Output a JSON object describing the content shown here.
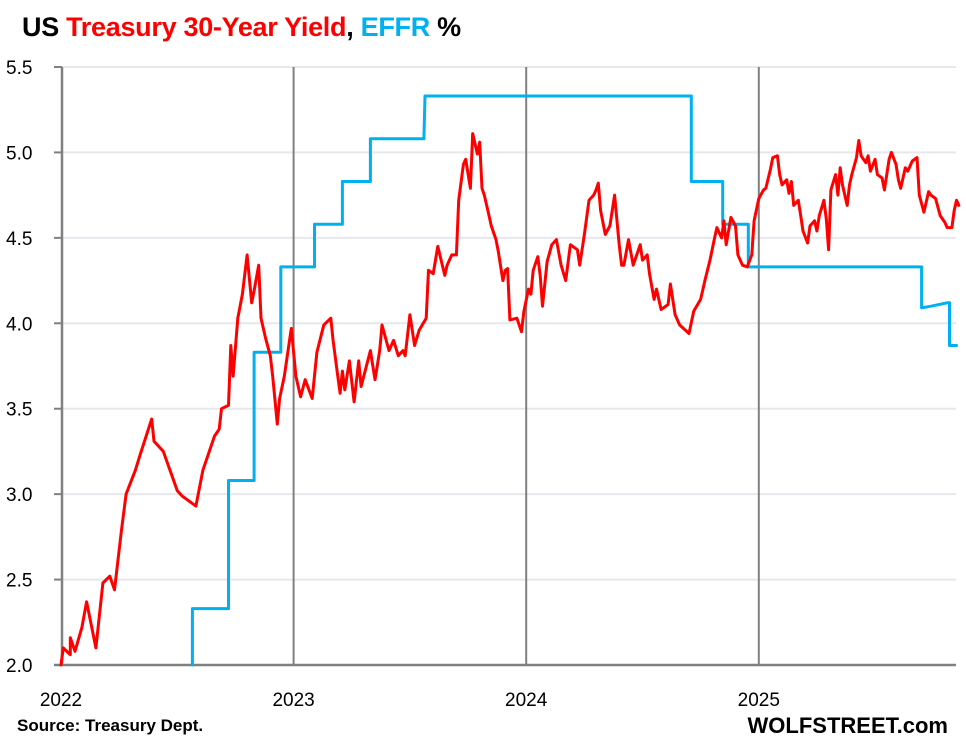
{
  "title": {
    "part1": "US ",
    "part2": "Treasury 30-Year Yield",
    "part3": ", ",
    "part4": "EFFR",
    "part5": " %",
    "color_treasury": "#FF0000",
    "color_effr": "#00B0F0"
  },
  "source": "Source: Treasury Dept.",
  "brand": "WOLFSTREET.com",
  "chart_data": {
    "type": "line",
    "title": "US Treasury 30-Year Yield, EFFR %",
    "xlabel": "",
    "ylabel": "",
    "xlim": [
      2022.0,
      2025.85
    ],
    "ylim": [
      2.0,
      5.5
    ],
    "grid": true,
    "legend": "none (colored title)",
    "x_ticks": [
      "2022",
      "2023",
      "2024",
      "2025"
    ],
    "x_tick_values": [
      2022,
      2023,
      2024,
      2025
    ],
    "y_ticks": [
      "2.0",
      "2.5",
      "3.0",
      "3.5",
      "4.0",
      "4.5",
      "5.0",
      "5.5"
    ],
    "y_tick_values": [
      2.0,
      2.5,
      3.0,
      3.5,
      4.0,
      4.5,
      5.0,
      5.5
    ],
    "series": [
      {
        "name": "Treasury 30-Year Yield",
        "color": "#FF0000",
        "points": [
          [
            2022.0,
            2.0
          ],
          [
            2022.01,
            2.1
          ],
          [
            2022.04,
            2.06
          ],
          [
            2022.04,
            2.16
          ],
          [
            2022.06,
            2.08
          ],
          [
            2022.09,
            2.22
          ],
          [
            2022.11,
            2.37
          ],
          [
            2022.15,
            2.1
          ],
          [
            2022.18,
            2.48
          ],
          [
            2022.21,
            2.52
          ],
          [
            2022.23,
            2.44
          ],
          [
            2022.26,
            2.79
          ],
          [
            2022.28,
            3.0
          ],
          [
            2022.32,
            3.14
          ],
          [
            2022.34,
            3.23
          ],
          [
            2022.39,
            3.44
          ],
          [
            2022.4,
            3.31
          ],
          [
            2022.44,
            3.25
          ],
          [
            2022.5,
            3.02
          ],
          [
            2022.52,
            2.99
          ],
          [
            2022.58,
            2.93
          ],
          [
            2022.61,
            3.14
          ],
          [
            2022.66,
            3.34
          ],
          [
            2022.68,
            3.38
          ],
          [
            2022.69,
            3.5
          ],
          [
            2022.72,
            3.52
          ],
          [
            2022.73,
            3.87
          ],
          [
            2022.74,
            3.69
          ],
          [
            2022.76,
            4.03
          ],
          [
            2022.78,
            4.17
          ],
          [
            2022.8,
            4.4
          ],
          [
            2022.82,
            4.12
          ],
          [
            2022.83,
            4.19
          ],
          [
            2022.85,
            4.34
          ],
          [
            2022.86,
            4.03
          ],
          [
            2022.88,
            3.91
          ],
          [
            2022.9,
            3.81
          ],
          [
            2022.91,
            3.69
          ],
          [
            2022.93,
            3.41
          ],
          [
            2022.94,
            3.56
          ],
          [
            2022.96,
            3.69
          ],
          [
            2022.99,
            3.97
          ],
          [
            2023.01,
            3.69
          ],
          [
            2023.03,
            3.57
          ],
          [
            2023.05,
            3.67
          ],
          [
            2023.08,
            3.56
          ],
          [
            2023.1,
            3.83
          ],
          [
            2023.13,
            3.99
          ],
          [
            2023.16,
            4.03
          ],
          [
            2023.17,
            3.9
          ],
          [
            2023.19,
            3.69
          ],
          [
            2023.2,
            3.59
          ],
          [
            2023.21,
            3.72
          ],
          [
            2023.22,
            3.61
          ],
          [
            2023.24,
            3.78
          ],
          [
            2023.26,
            3.54
          ],
          [
            2023.28,
            3.78
          ],
          [
            2023.29,
            3.63
          ],
          [
            2023.33,
            3.84
          ],
          [
            2023.35,
            3.67
          ],
          [
            2023.37,
            3.84
          ],
          [
            2023.38,
            3.99
          ],
          [
            2023.41,
            3.84
          ],
          [
            2023.43,
            3.9
          ],
          [
            2023.45,
            3.81
          ],
          [
            2023.47,
            3.84
          ],
          [
            2023.48,
            3.81
          ],
          [
            2023.5,
            4.05
          ],
          [
            2023.52,
            3.87
          ],
          [
            2023.54,
            3.96
          ],
          [
            2023.57,
            4.03
          ],
          [
            2023.58,
            4.31
          ],
          [
            2023.6,
            4.29
          ],
          [
            2023.62,
            4.45
          ],
          [
            2023.65,
            4.28
          ],
          [
            2023.66,
            4.34
          ],
          [
            2023.68,
            4.4
          ],
          [
            2023.7,
            4.4
          ],
          [
            2023.71,
            4.72
          ],
          [
            2023.73,
            4.93
          ],
          [
            2023.74,
            4.96
          ],
          [
            2023.76,
            4.79
          ],
          [
            2023.77,
            5.11
          ],
          [
            2023.79,
            4.99
          ],
          [
            2023.8,
            5.06
          ],
          [
            2023.81,
            4.79
          ],
          [
            2023.82,
            4.75
          ],
          [
            2023.84,
            4.63
          ],
          [
            2023.85,
            4.57
          ],
          [
            2023.87,
            4.49
          ],
          [
            2023.88,
            4.42
          ],
          [
            2023.9,
            4.25
          ],
          [
            2023.91,
            4.31
          ],
          [
            2023.92,
            4.32
          ],
          [
            2023.93,
            4.02
          ],
          [
            2023.96,
            4.03
          ],
          [
            2023.98,
            3.95
          ],
          [
            2023.99,
            4.07
          ],
          [
            2024.01,
            4.2
          ],
          [
            2024.02,
            4.17
          ],
          [
            2024.03,
            4.31
          ],
          [
            2024.05,
            4.39
          ],
          [
            2024.06,
            4.28
          ],
          [
            2024.07,
            4.1
          ],
          [
            2024.09,
            4.36
          ],
          [
            2024.11,
            4.46
          ],
          [
            2024.13,
            4.49
          ],
          [
            2024.15,
            4.34
          ],
          [
            2024.17,
            4.25
          ],
          [
            2024.19,
            4.46
          ],
          [
            2024.22,
            4.43
          ],
          [
            2024.23,
            4.34
          ],
          [
            2024.25,
            4.52
          ],
          [
            2024.27,
            4.72
          ],
          [
            2024.29,
            4.75
          ],
          [
            2024.3,
            4.78
          ],
          [
            2024.31,
            4.82
          ],
          [
            2024.32,
            4.66
          ],
          [
            2024.34,
            4.52
          ],
          [
            2024.36,
            4.57
          ],
          [
            2024.38,
            4.75
          ],
          [
            2024.4,
            4.46
          ],
          [
            2024.41,
            4.34
          ],
          [
            2024.42,
            4.34
          ],
          [
            2024.44,
            4.49
          ],
          [
            2024.46,
            4.34
          ],
          [
            2024.49,
            4.46
          ],
          [
            2024.5,
            4.37
          ],
          [
            2024.52,
            4.4
          ],
          [
            2024.53,
            4.29
          ],
          [
            2024.55,
            4.14
          ],
          [
            2024.56,
            4.2
          ],
          [
            2024.58,
            4.08
          ],
          [
            2024.61,
            4.11
          ],
          [
            2024.62,
            4.23
          ],
          [
            2024.64,
            4.05
          ],
          [
            2024.66,
            3.99
          ],
          [
            2024.7,
            3.94
          ],
          [
            2024.72,
            4.07
          ],
          [
            2024.75,
            4.14
          ],
          [
            2024.77,
            4.26
          ],
          [
            2024.79,
            4.37
          ],
          [
            2024.81,
            4.5
          ],
          [
            2024.82,
            4.56
          ],
          [
            2024.84,
            4.5
          ],
          [
            2024.85,
            4.6
          ],
          [
            2024.86,
            4.46
          ],
          [
            2024.88,
            4.62
          ],
          [
            2024.9,
            4.57
          ],
          [
            2024.91,
            4.4
          ],
          [
            2024.93,
            4.34
          ],
          [
            2024.95,
            4.33
          ],
          [
            2024.97,
            4.4
          ],
          [
            2024.98,
            4.6
          ],
          [
            2025.0,
            4.73
          ],
          [
            2025.02,
            4.78
          ],
          [
            2025.03,
            4.79
          ],
          [
            2025.05,
            4.9
          ],
          [
            2025.06,
            4.97
          ],
          [
            2025.08,
            4.98
          ],
          [
            2025.09,
            4.87
          ],
          [
            2025.1,
            4.81
          ],
          [
            2025.12,
            4.84
          ],
          [
            2025.13,
            4.76
          ],
          [
            2025.14,
            4.83
          ],
          [
            2025.15,
            4.69
          ],
          [
            2025.17,
            4.72
          ],
          [
            2025.18,
            4.63
          ],
          [
            2025.19,
            4.54
          ],
          [
            2025.21,
            4.47
          ],
          [
            2025.22,
            4.57
          ],
          [
            2025.24,
            4.6
          ],
          [
            2025.25,
            4.54
          ],
          [
            2025.26,
            4.63
          ],
          [
            2025.28,
            4.72
          ],
          [
            2025.29,
            4.61
          ],
          [
            2025.3,
            4.43
          ],
          [
            2025.31,
            4.78
          ],
          [
            2025.33,
            4.87
          ],
          [
            2025.34,
            4.75
          ],
          [
            2025.35,
            4.91
          ],
          [
            2025.36,
            4.81
          ],
          [
            2025.38,
            4.69
          ],
          [
            2025.39,
            4.81
          ],
          [
            2025.4,
            4.87
          ],
          [
            2025.42,
            4.97
          ],
          [
            2025.43,
            5.07
          ],
          [
            2025.44,
            4.98
          ],
          [
            2025.46,
            4.94
          ],
          [
            2025.47,
            4.98
          ],
          [
            2025.48,
            4.89
          ],
          [
            2025.5,
            4.96
          ],
          [
            2025.51,
            4.87
          ],
          [
            2025.53,
            4.85
          ],
          [
            2025.54,
            4.78
          ],
          [
            2025.56,
            4.96
          ],
          [
            2025.57,
            5.0
          ],
          [
            2025.59,
            4.93
          ],
          [
            2025.6,
            4.84
          ],
          [
            2025.61,
            4.79
          ],
          [
            2025.63,
            4.91
          ],
          [
            2025.64,
            4.89
          ],
          [
            2025.66,
            4.95
          ],
          [
            2025.68,
            4.97
          ],
          [
            2025.69,
            4.75
          ],
          [
            2025.71,
            4.65
          ],
          [
            2025.73,
            4.77
          ],
          [
            2025.74,
            4.75
          ],
          [
            2025.76,
            4.73
          ],
          [
            2025.78,
            4.63
          ],
          [
            2025.8,
            4.59
          ],
          [
            2025.81,
            4.56
          ],
          [
            2025.83,
            4.56
          ],
          [
            2025.84,
            4.66
          ],
          [
            2025.85,
            4.72
          ],
          [
            2025.86,
            4.69
          ],
          [
            2025.85,
            4.7
          ]
        ]
      },
      {
        "name": "EFFR",
        "color": "#00B0F0",
        "points": [
          [
            2022.565,
            2.0
          ],
          [
            2022.565,
            2.33
          ],
          [
            2022.72,
            2.33
          ],
          [
            2022.72,
            3.08
          ],
          [
            2022.83,
            3.08
          ],
          [
            2022.83,
            3.83
          ],
          [
            2022.945,
            3.83
          ],
          [
            2022.945,
            4.33
          ],
          [
            2023.09,
            4.33
          ],
          [
            2023.09,
            4.58
          ],
          [
            2023.21,
            4.58
          ],
          [
            2023.21,
            4.83
          ],
          [
            2023.33,
            4.83
          ],
          [
            2023.33,
            5.08
          ],
          [
            2023.56,
            5.08
          ],
          [
            2023.565,
            5.33
          ],
          [
            2024.71,
            5.33
          ],
          [
            2024.71,
            4.83
          ],
          [
            2024.845,
            4.83
          ],
          [
            2024.845,
            4.58
          ],
          [
            2024.955,
            4.58
          ],
          [
            2024.955,
            4.33
          ],
          [
            2025.7,
            4.33
          ],
          [
            2025.7,
            4.09
          ],
          [
            2025.74,
            4.1
          ],
          [
            2025.81,
            4.12
          ],
          [
            2025.82,
            4.12
          ],
          [
            2025.82,
            3.87
          ],
          [
            2025.85,
            3.87
          ]
        ]
      }
    ]
  }
}
